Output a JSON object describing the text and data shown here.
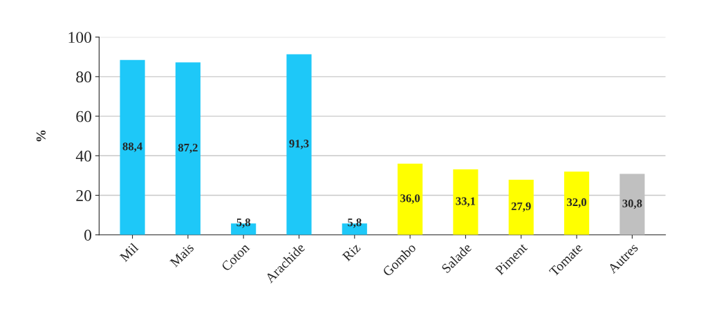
{
  "chart_data": {
    "type": "bar",
    "ylabel": "%",
    "categories": [
      "Mil",
      "Mais",
      "Coton",
      "Arachide",
      "Riz",
      "Gombo",
      "Salade",
      "Piment",
      "Tomate",
      "Autres"
    ],
    "values": [
      88.4,
      87.2,
      5.8,
      91.3,
      5.8,
      36.0,
      33.1,
      27.9,
      32.0,
      30.8
    ],
    "colors": [
      "#1ec8f8",
      "#1ec8f8",
      "#1ec8f8",
      "#1ec8f8",
      "#1ec8f8",
      "#ffff00",
      "#ffff00",
      "#ffff00",
      "#ffff00",
      "#c0c0c0"
    ],
    "value_labels": [
      "88,4",
      "87,2",
      "5,8",
      "91,3",
      "5,8",
      "36,0",
      "33,1",
      "27,9",
      "32,0",
      "30,8"
    ],
    "ylim": [
      0,
      100
    ],
    "yticks": [
      0,
      20,
      40,
      60,
      80,
      100
    ],
    "grid": "y",
    "legend": false
  }
}
